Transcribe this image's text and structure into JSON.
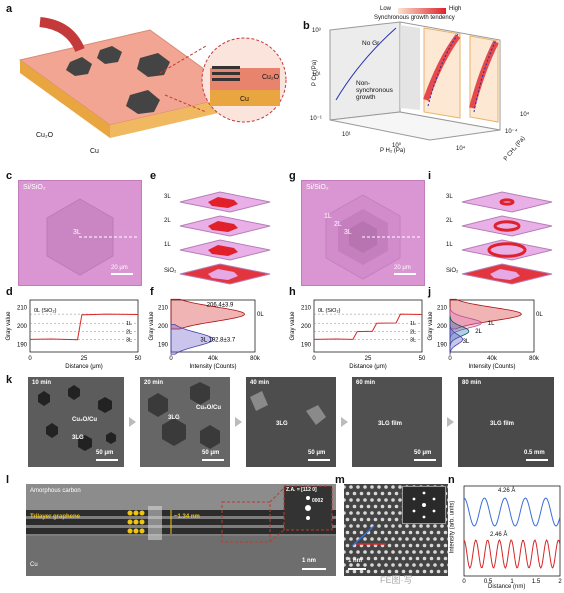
{
  "labels": {
    "a": "a",
    "b": "b",
    "c": "c",
    "d": "d",
    "e": "e",
    "f": "f",
    "g": "g",
    "h": "h",
    "i": "i",
    "j": "j",
    "k": "k",
    "l": "l",
    "m": "m",
    "n": "n"
  },
  "panel_a": {
    "cu2o": "Cu₂O",
    "cu": "Cu",
    "zoom_cu2o": "Cu₂O",
    "zoom_cu": "Cu"
  },
  "panel_b": {
    "legend_low": "Low",
    "legend_high": "High",
    "legend_caption": "Synchronous growth tendency",
    "region_no_gr": "No Gr",
    "region_nonsync": "Non-synchronous growth",
    "axis_pcu": "P Cu (Pa)",
    "axis_ph2": "P H₂ (Pa)",
    "axis_pch4": "P CH₄ (Pa)",
    "ticks_pcu": [
      "10³",
      "10¹",
      "10⁻¹"
    ],
    "ticks_ph2": [
      "10¹",
      "10⁰",
      "10⁴"
    ],
    "ticks_pch4": [
      "10⁻⁴",
      "10⁻²",
      "10⁰",
      "10²",
      "10⁴"
    ],
    "colors": {
      "low": "#fbe3d0",
      "high": "#e0202a"
    }
  },
  "panel_c": {
    "substrate": "Si/SiO₂",
    "layer": "3L",
    "scale": "20 μm"
  },
  "panel_g": {
    "substrate": "Si/SiO₂",
    "layers": [
      "1L",
      "2L",
      "3L"
    ],
    "scale": "20 μm"
  },
  "panel_e": {
    "layers": [
      "3L",
      "2L",
      "1L",
      "SiO₂"
    ]
  },
  "panel_i": {
    "layers": [
      "3L",
      "2L",
      "1L",
      "SiO₂"
    ]
  },
  "panel_d": {
    "xlabel": "Distance (μm)",
    "ylabel": "Gray value",
    "xticks": [
      "0",
      "25",
      "50"
    ],
    "yticks": [
      "190",
      "200",
      "210"
    ],
    "annotations": [
      "0L (SiO₂)",
      "1L",
      "2L",
      "3L"
    ]
  },
  "panel_h": {
    "xlabel": "Distance (μm)",
    "ylabel": "Gray value",
    "xticks": [
      "0",
      "25",
      "50"
    ],
    "yticks": [
      "190",
      "200",
      "210"
    ],
    "annotations": [
      "0L (SiO₂)",
      "1L",
      "2L",
      "3L"
    ]
  },
  "panel_f": {
    "xlabel": "Intensity (Counts)",
    "ylabel": "Gray value",
    "xticks": [
      "0",
      "40k",
      "80k"
    ],
    "yticks": [
      "190",
      "200",
      "210"
    ],
    "peak_0L": "206.4±3.9",
    "peak_3L": "192.8±3.7",
    "label_0L": "0L",
    "label_3L": "3L"
  },
  "panel_j": {
    "xlabel": "Intensity (Counts)",
    "ylabel": "Gray value",
    "xticks": [
      "0",
      "40k",
      "80k"
    ],
    "yticks": [
      "190",
      "200",
      "210"
    ],
    "labels": [
      "0L",
      "1L",
      "2L",
      "3L"
    ]
  },
  "panel_k": {
    "frames": [
      {
        "time": "10 min",
        "label1": "Cu₂O/Cu",
        "label2": "3LG",
        "scale": "50 μm"
      },
      {
        "time": "20 min",
        "label1": "Cu₂O/Cu",
        "label2": "3LG",
        "scale": "50 μm"
      },
      {
        "time": "40 min",
        "label1": "3LG",
        "label2": "",
        "scale": "50 μm"
      },
      {
        "time": "60 min",
        "label1": "3LG film",
        "label2": "",
        "scale": "50 μm"
      },
      {
        "time": "80 min",
        "label1": "3LG film",
        "label2": "",
        "scale": "0.5 mm"
      }
    ]
  },
  "panel_l": {
    "amorphous": "Amorphous carbon",
    "trilayer": "Trilayer graphene",
    "spacing": "~1.34 nm",
    "cu": "Cu",
    "scale": "1 nm",
    "za": "Z.A. = [11̅2 0]",
    "spot": "0002"
  },
  "panel_m": {
    "scale": "1 nm"
  },
  "panel_n": {
    "ylabel": "Intensity (arb. units)",
    "xlabel": "Distance (nm)",
    "xticks": [
      "0",
      "0.5",
      "1",
      "1.5",
      "2"
    ],
    "blue_label": "4.26 Å",
    "red_label": "2.46 Å",
    "watermark": "FE图·写"
  }
}
